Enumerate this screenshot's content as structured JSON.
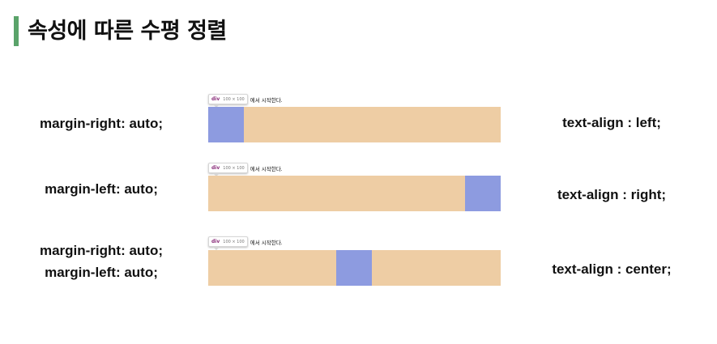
{
  "title": "속성에 따른 수평 정렬",
  "rows": [
    {
      "css_lines": [
        "margin-right: auto;"
      ],
      "text_align": "text-align : left;",
      "tooltip": {
        "tag": "div",
        "size": "100 × 100",
        "text": "에서 시작한다."
      },
      "block_position": "left"
    },
    {
      "css_lines": [
        "margin-left: auto;"
      ],
      "text_align": "text-align : right;",
      "tooltip": {
        "tag": "div",
        "size": "100 × 100",
        "text": "에서 시작한다."
      },
      "block_position": "right"
    },
    {
      "css_lines": [
        "margin-right: auto;",
        "margin-left: auto;"
      ],
      "text_align": "text-align : center;",
      "tooltip": {
        "tag": "div",
        "size": "100 × 100",
        "text": "에서 시작한다."
      },
      "block_position": "center"
    }
  ],
  "colors": {
    "accent_bar": "#5aa36a",
    "container": "#eecda4",
    "block": "#8d9be0"
  }
}
